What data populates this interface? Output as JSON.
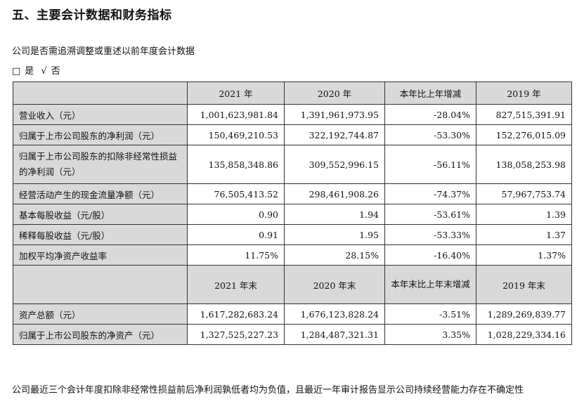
{
  "heading": "五、主要会计数据和财务指标",
  "intro": "公司是否需追溯调整或重述以前年度会计数据",
  "choice": {
    "box": "□",
    "yes": "是",
    "check": "√",
    "no": "否"
  },
  "table1": {
    "headers": [
      "",
      "2021 年",
      "2020 年",
      "本年比上年增减",
      "2019 年"
    ],
    "rows": [
      [
        "营业收入（元）",
        "1,001,623,981.84",
        "1,391,961,973.95",
        "-28.04%",
        "827,515,391.91"
      ],
      [
        "归属于上市公司股东的净利润（元）",
        "150,469,210.53",
        "322,192,744.87",
        "-53.30%",
        "152,276,015.09"
      ],
      [
        "归属于上市公司股东的扣除非经常性损益的净利润（元）",
        "135,858,348.86",
        "309,552,996.15",
        "-56.11%",
        "138,058,253.98"
      ],
      [
        "经营活动产生的现金流量净额（元）",
        "76,505,413.52",
        "298,461,908.26",
        "-74.37%",
        "57,967,753.74"
      ],
      [
        "基本每股收益（元/股）",
        "0.90",
        "1.94",
        "-53.61%",
        "1.39"
      ],
      [
        "稀释每股收益（元/股）",
        "0.91",
        "1.95",
        "-53.33%",
        "1.37"
      ],
      [
        "加权平均净资产收益率",
        "11.75%",
        "28.15%",
        "-16.40%",
        "1.37%"
      ]
    ]
  },
  "table2": {
    "headers": [
      "",
      "2021 年末",
      "2020 年末",
      "本年末比上年末增减",
      "2019 年末"
    ],
    "rows": [
      [
        "资产总额（元）",
        "1,617,282,683.24",
        "1,676,123,828.24",
        "-3.51%",
        "1,289,269,839.77"
      ],
      [
        "归属于上市公司股东的净资产（元）",
        "1,327,525,227.23",
        "1,284,487,321.31",
        "3.35%",
        "1,028,229,334.16"
      ]
    ]
  },
  "footer": "公司最近三个会计年度扣除非经常性损益前后净利润孰低者均为负值，且最近一年审计报告显示公司持续经营能力存在不确定性"
}
